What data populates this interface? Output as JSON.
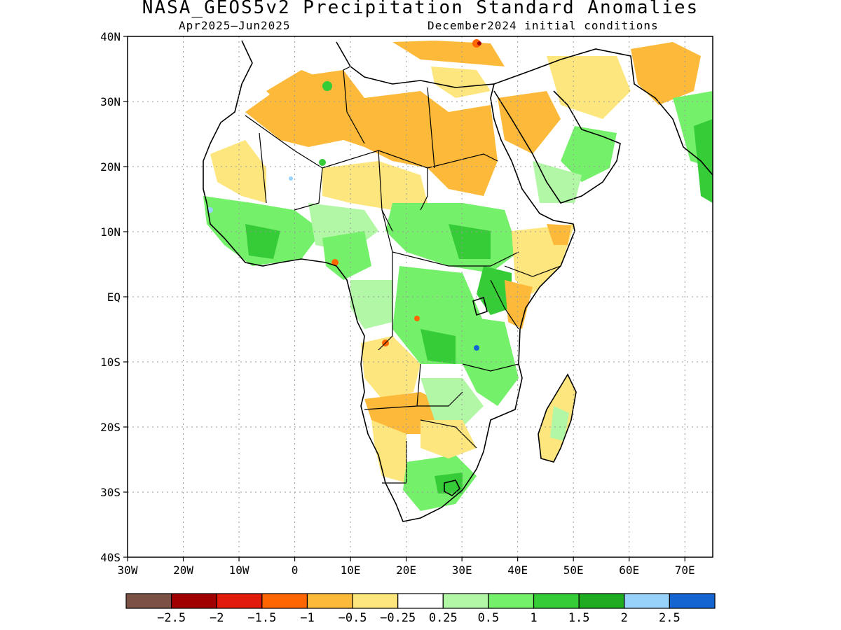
{
  "title": "NASA_GEOS5v2 Precipitation Standard Anomalies",
  "subtitle_left": "Apr2025–Jun2025",
  "subtitle_right": "December2024 initial conditions",
  "map": {
    "lat_range": [
      -40,
      40
    ],
    "lon_range": [
      -30,
      75
    ],
    "lat_labels": [
      "40N",
      "30N",
      "20N",
      "10N",
      "EQ",
      "10S",
      "20S",
      "30S",
      "40S"
    ],
    "lon_labels": [
      "30W",
      "20W",
      "10W",
      "0",
      "10E",
      "20E",
      "30E",
      "40E",
      "50E",
      "60E",
      "70E"
    ],
    "gridlines": "dotted"
  },
  "colorbar": {
    "colors": [
      "#7b5045",
      "#a00000",
      "#e11a0c",
      "#ff6600",
      "#fdba3a",
      "#fee67e",
      "#ffffff",
      "#b1f7a6",
      "#75f06a",
      "#35cc37",
      "#1fab22",
      "#96d2fa",
      "#1464d2"
    ],
    "labels": [
      "−2.5",
      "−2",
      "−1.5",
      "−1",
      "−0.5",
      "−0.25",
      "0.25",
      "0.5",
      "1",
      "1.5",
      "2",
      "2.5"
    ]
  },
  "anomaly_colors": {
    "dry_light": "#fee67e",
    "dry": "#fdba3a",
    "dry_strong": "#ff6600",
    "wet_light": "#b1f7a6",
    "wet": "#75f06a",
    "wet_strong": "#35cc37",
    "wet_very": "#1fab22"
  }
}
